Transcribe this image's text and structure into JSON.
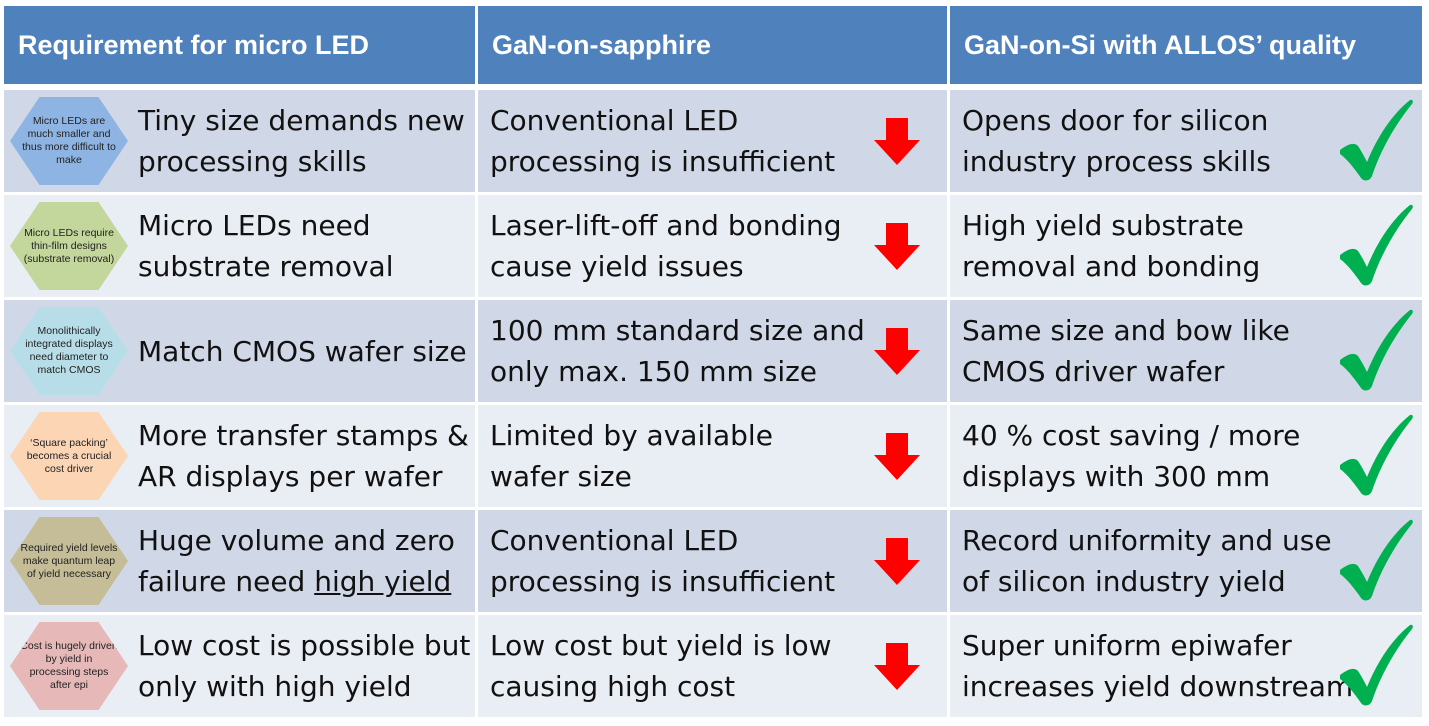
{
  "headers": [
    "Requirement for micro LED",
    "GaN-on-sapphire",
    "GaN-on-Si with ALLOS’ quality"
  ],
  "colors": {
    "header_bg": "#4f81bd",
    "row_dark": "#d0d8e8",
    "row_light": "#e9edf4",
    "arrow_red": "#ff0000",
    "check_green": "#00b050"
  },
  "icons": {
    "sapphire": "down-arrow-icon",
    "allos": "checkmark-icon"
  },
  "rows": [
    {
      "hex": {
        "text": "Micro LEDs are much smaller and thus more difficult to make",
        "color": "#8eb4e3"
      },
      "req": [
        "Tiny size demands new",
        "processing skills"
      ],
      "sapphire": [
        "Conventional LED",
        "processing is insufficient"
      ],
      "allos": [
        "Opens door for silicon",
        "industry process skills"
      ]
    },
    {
      "hex": {
        "text": "Micro LEDs require thin-film designs (substrate removal)",
        "color": "#c3d69b"
      },
      "req": [
        "Micro LEDs need",
        "substrate removal"
      ],
      "sapphire": [
        "Laser-lift-off and bonding",
        "cause yield issues"
      ],
      "allos": [
        "High yield substrate",
        "removal and bonding"
      ]
    },
    {
      "hex": {
        "text": "Monolithically integrated displays need diameter to match CMOS",
        "color": "#b7dee8"
      },
      "req": [
        "Match CMOS wafer size"
      ],
      "sapphire": [
        "100 mm standard size and",
        "only max. 150 mm size"
      ],
      "allos": [
        "Same size and bow like",
        "CMOS driver wafer"
      ]
    },
    {
      "hex": {
        "text": "‘Square packing’ becomes a crucial cost driver",
        "color": "#fcd5b5"
      },
      "req": [
        "More transfer stamps &",
        "AR displays per wafer"
      ],
      "sapphire": [
        "Limited by available",
        "wafer size"
      ],
      "allos": [
        "40 % cost saving / more",
        "displays with 300 mm"
      ]
    },
    {
      "hex": {
        "text": "Required yield levels make quantum leap of yield necessary",
        "color": "#c4bd97"
      },
      "req": [
        "Huge volume and zero",
        "failure need "
      ],
      "req_underlined": "high yield",
      "sapphire": [
        "Conventional LED",
        "processing is insufficient"
      ],
      "allos": [
        "Record uniformity and use",
        "of silicon industry yield"
      ]
    },
    {
      "hex": {
        "text": "Cost is hugely driven by yield in processing steps after epi",
        "color": "#e6b9b8"
      },
      "req": [
        "Low cost is possible but",
        "only with high yield"
      ],
      "sapphire": [
        "Low cost but yield is low",
        "causing high cost"
      ],
      "allos": [
        "Super uniform epiwafer",
        "increases yield downstream"
      ]
    }
  ]
}
